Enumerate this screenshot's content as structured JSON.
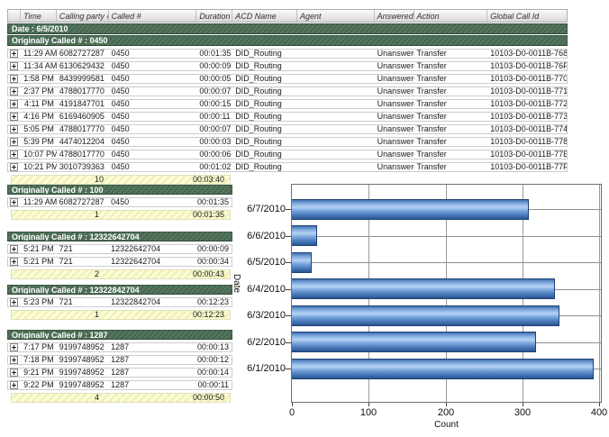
{
  "table": {
    "columns": [
      "Time",
      "Calling party #",
      "Called #",
      "Duration",
      "ACD Name",
      "Agent",
      "Answered",
      "Action",
      "Global Call Id"
    ],
    "date_group": "Date : 6/5/2010",
    "called_group": "Originally Called # : 0450",
    "rows": [
      {
        "time": "11:29 AM",
        "calling_party": "6082727287",
        "called": "0450",
        "duration": "00:01:35",
        "acd_name": "DID_Routing",
        "agent": "",
        "answered": "Unanswered",
        "action": "Transfer",
        "global_call_id": "10103-D0-0011B-768"
      },
      {
        "time": "11:34 AM",
        "calling_party": "6130629432",
        "called": "0450",
        "duration": "00:00:09",
        "acd_name": "DID_Routing",
        "agent": "",
        "answered": "Unanswered",
        "action": "Transfer",
        "global_call_id": "10103-D0-0011B-76F"
      },
      {
        "time": "1:58 PM",
        "calling_party": "8439999581",
        "called": "0450",
        "duration": "00:00:05",
        "acd_name": "DID_Routing",
        "agent": "",
        "answered": "Unanswered",
        "action": "Transfer",
        "global_call_id": "10103-D0-0011B-770"
      },
      {
        "time": "2:37 PM",
        "calling_party": "4788017770",
        "called": "0450",
        "duration": "00:00:07",
        "acd_name": "DID_Routing",
        "agent": "",
        "answered": "Unanswered",
        "action": "Transfer",
        "global_call_id": "10103-D0-0011B-771"
      },
      {
        "time": "4:11 PM",
        "calling_party": "4191847701",
        "called": "0450",
        "duration": "00:00:15",
        "acd_name": "DID_Routing",
        "agent": "",
        "answered": "Unanswered",
        "action": "Transfer",
        "global_call_id": "10103-D0-0011B-772"
      },
      {
        "time": "4:16 PM",
        "calling_party": "6169460905",
        "called": "0450",
        "duration": "00:00:11",
        "acd_name": "DID_Routing",
        "agent": "",
        "answered": "Unanswered",
        "action": "Transfer",
        "global_call_id": "10103-D0-0011B-773"
      },
      {
        "time": "5:05 PM",
        "calling_party": "4788017770",
        "called": "0450",
        "duration": "00:00:07",
        "acd_name": "DID_Routing",
        "agent": "",
        "answered": "Unanswered",
        "action": "Transfer",
        "global_call_id": "10103-D0-0011B-774"
      },
      {
        "time": "5:39 PM",
        "calling_party": "4474012204",
        "called": "0450",
        "duration": "00:00:03",
        "acd_name": "DID_Routing",
        "agent": "",
        "answered": "Unanswered",
        "action": "Transfer",
        "global_call_id": "10103-D0-0011B-778"
      },
      {
        "time": "10:07 PM",
        "calling_party": "4788017770",
        "called": "0450",
        "duration": "00:00:06",
        "acd_name": "DID_Routing",
        "agent": "",
        "answered": "Unanswered",
        "action": "Transfer",
        "global_call_id": "10103-D0-0011B-77E"
      },
      {
        "time": "10:21 PM",
        "calling_party": "3010739363",
        "called": "0450",
        "duration": "00:01:02",
        "acd_name": "DID_Routing",
        "agent": "",
        "answered": "Unanswered",
        "action": "Transfer",
        "global_call_id": "10103-D0-0011B-77F"
      }
    ],
    "summary": {
      "count": "10",
      "total_duration": "00:03:40"
    }
  },
  "groups": [
    {
      "title": "Originally Called # : 100",
      "rows": [
        {
          "time": "11:29 AM",
          "calling_party": "6082727287",
          "called": "0450",
          "duration": "00:01:35"
        }
      ],
      "summary": {
        "count": "1",
        "total": "00:01:35"
      }
    },
    {
      "title": "Originally Called # : 12322642704",
      "rows": [
        {
          "time": "5:21 PM",
          "calling_party": "721",
          "called": "12322642704",
          "duration": "00:00:09"
        },
        {
          "time": "5:21 PM",
          "calling_party": "721",
          "called": "12322642704",
          "duration": "00:00:34"
        }
      ],
      "summary": {
        "count": "2",
        "total": "00:00:43"
      }
    },
    {
      "title": "Originally Called # : 12322842704",
      "rows": [
        {
          "time": "5:23 PM",
          "calling_party": "721",
          "called": "12322842704",
          "duration": "00:12:23"
        }
      ],
      "summary": {
        "count": "1",
        "total": "00:12:23"
      }
    },
    {
      "title": "Originally Called # : 1287",
      "rows": [
        {
          "time": "7:17 PM",
          "calling_party": "9199748952",
          "called": "1287",
          "duration": "00:00:13"
        },
        {
          "time": "7:18 PM",
          "calling_party": "9199748952",
          "called": "1287",
          "duration": "00:00:12"
        },
        {
          "time": "9:21 PM",
          "calling_party": "9199748952",
          "called": "1287",
          "duration": "00:00:14"
        },
        {
          "time": "9:22 PM",
          "calling_party": "9199748952",
          "called": "1287",
          "duration": "00:00:11"
        }
      ],
      "summary": {
        "count": "4",
        "total": "00:00:50"
      }
    }
  ],
  "chart_data": {
    "type": "bar",
    "orientation": "horizontal",
    "categories": [
      "6/7/2010",
      "6/6/2010",
      "6/5/2010",
      "6/4/2010",
      "6/3/2010",
      "6/2/2010",
      "6/1/2010"
    ],
    "categories_order": "top-to-bottom",
    "values": [
      309,
      33,
      26,
      342,
      348,
      318,
      393
    ],
    "title": "",
    "xlabel": "Count",
    "ylabel": "Date",
    "xlim": [
      0,
      400
    ],
    "xticks": [
      0,
      100,
      200,
      300,
      400
    ],
    "grid": true,
    "legend": false,
    "bar_color": "#6f9fd9",
    "bar_border_color": "#1d4272"
  },
  "colors": {
    "group_header_green": "#47654f",
    "summary_yellow": "#f8f8cc",
    "bar_blue": "#6f9fd9",
    "bar_border_navy": "#1d4272",
    "header_gray": "#d9d9d9"
  },
  "icons": {
    "expand": "+"
  }
}
